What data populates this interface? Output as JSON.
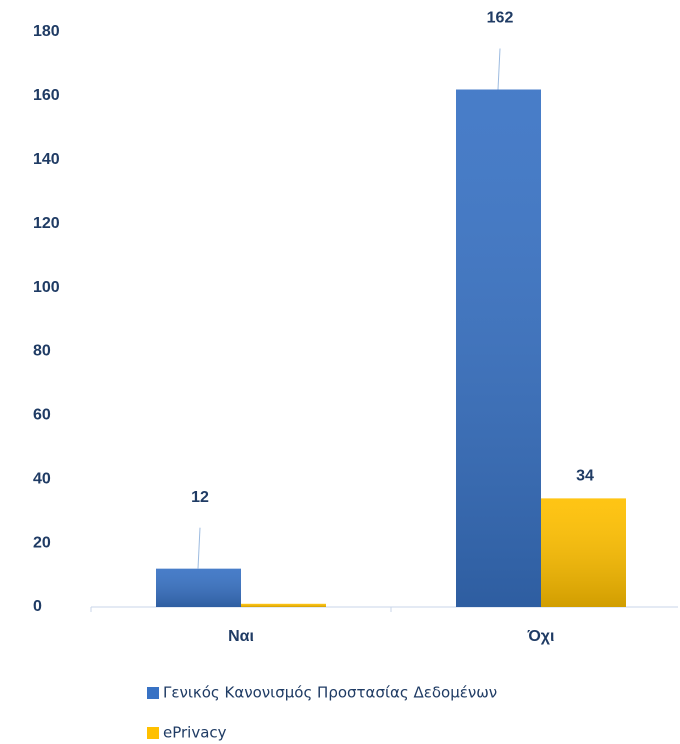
{
  "chart_data": {
    "type": "bar",
    "categories": [
      "Ναι",
      "Όχι"
    ],
    "series": [
      {
        "name": "Γενικός Κανονισμός Προστασίας Δεδομένων",
        "color": "#3872c4",
        "values": [
          12,
          162
        ],
        "value_labels": [
          "12",
          "162"
        ]
      },
      {
        "name": "ePrivacy",
        "color": "#ffc000",
        "values": [
          1,
          34
        ],
        "value_labels": [
          null,
          "34"
        ]
      }
    ],
    "ylim": [
      0,
      180
    ],
    "yticks": [
      0,
      20,
      40,
      60,
      80,
      100,
      120,
      140,
      160,
      180
    ],
    "grid": false
  }
}
